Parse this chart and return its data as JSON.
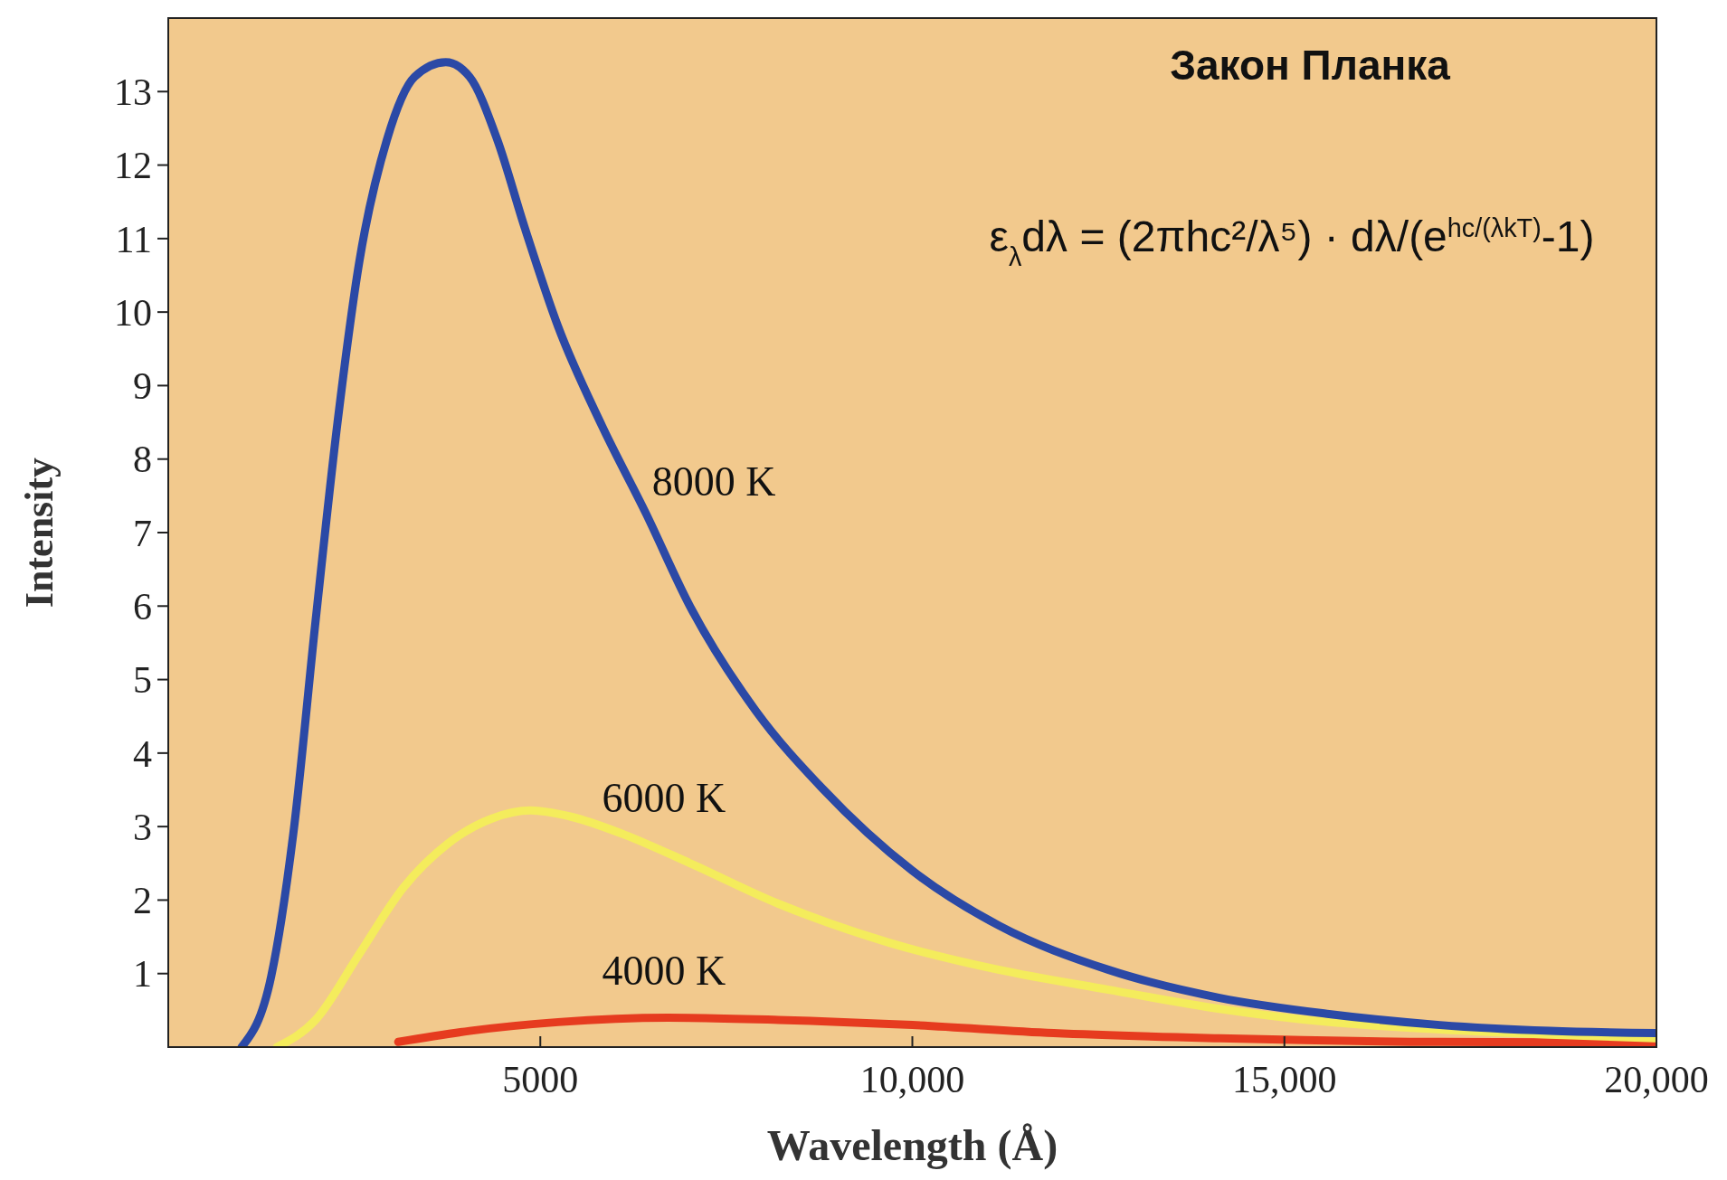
{
  "chart_data": {
    "type": "line",
    "title": "Закон Планка",
    "xlabel": "Wavelength (Å)",
    "ylabel": "Intensity",
    "annotations": [
      "ε$_{λ}$dλ = (2πhc²/λ⁵) · dλ/(e$^{hc/(λkT)}$-1)"
    ],
    "xlim": [
      0,
      20000
    ],
    "xticks": [
      {
        "value": 5000,
        "label": "5000"
      },
      {
        "value": 10000,
        "label": "10,000"
      },
      {
        "value": 15000,
        "label": "15,000"
      },
      {
        "value": 20000,
        "label": "20,000"
      }
    ],
    "ylim": [
      0,
      14
    ],
    "yticks": [
      1,
      2,
      3,
      4,
      5,
      6,
      7,
      8,
      9,
      10,
      11,
      12,
      13
    ],
    "grid": false,
    "marker": "none",
    "line_style": "solid",
    "series": [
      {
        "name": "8000 K",
        "color": "#2b49a6",
        "x": [
          985,
          1385,
          1680,
          1980,
          2275,
          2570,
          2940,
          3310,
          3730,
          4050,
          4420,
          4790,
          5240,
          5830,
          6420,
          7015,
          7900,
          8790,
          10000,
          11170,
          12640,
          14130,
          15600,
          17090,
          18570,
          20000
        ],
        "values": [
          0,
          0.97,
          2.9,
          5.8,
          8.5,
          10.7,
          12.35,
          13.2,
          13.4,
          13.2,
          12.35,
          11.15,
          9.8,
          8.45,
          7.26,
          5.99,
          4.57,
          3.52,
          2.4,
          1.65,
          1.05,
          0.67,
          0.45,
          0.3,
          0.22,
          0.19
        ]
      },
      {
        "name": "6000 K",
        "color": "#f4ec5c",
        "x": [
          1460,
          1980,
          2570,
          3160,
          3760,
          4350,
          4870,
          5390,
          6130,
          7015,
          8200,
          9690,
          11170,
          12640,
          14130,
          15600,
          17090,
          18570,
          20000
        ],
        "values": [
          0,
          0.37,
          1.27,
          2.17,
          2.77,
          3.11,
          3.22,
          3.14,
          2.89,
          2.5,
          1.95,
          1.42,
          1.05,
          0.78,
          0.52,
          0.34,
          0.24,
          0.17,
          0.12
        ]
      },
      {
        "name": "4000 K",
        "color": "#e63b1f",
        "x": [
          3090,
          4050,
          5240,
          6720,
          8200,
          10000,
          11900,
          14130,
          17090,
          20000
        ],
        "values": [
          0.07,
          0.22,
          0.34,
          0.4,
          0.37,
          0.3,
          0.19,
          0.12,
          0.07,
          0.06
        ]
      }
    ]
  }
}
